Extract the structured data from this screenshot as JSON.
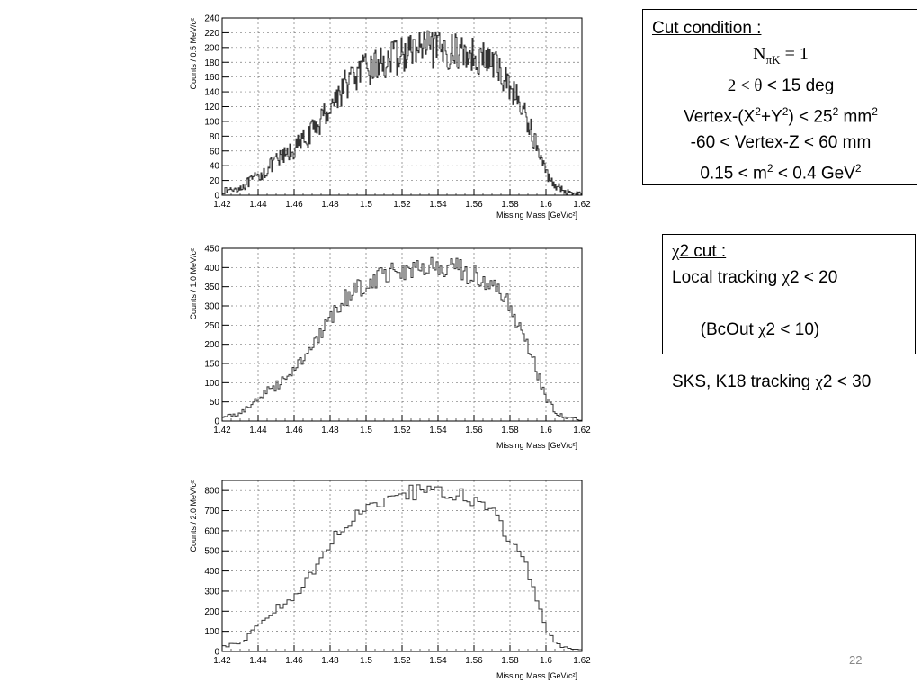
{
  "chart_data": [
    {
      "type": "histogram",
      "xlabel": "Missing Mass [GeV/c²]",
      "ylabel": "Counts / 0.5 MeV/c²",
      "xlim": [
        1.42,
        1.62
      ],
      "ylim": [
        0,
        240
      ],
      "xticks": [
        "1.42",
        "1.44",
        "1.46",
        "1.48",
        "1.5",
        "1.52",
        "1.54",
        "1.56",
        "1.58",
        "1.6",
        "1.62"
      ],
      "yticks": [
        "0",
        "20",
        "40",
        "60",
        "80",
        "100",
        "120",
        "140",
        "160",
        "180",
        "200",
        "220",
        "240"
      ],
      "grid": true,
      "bin_width": 0.0005,
      "shape_x": [
        1.42,
        1.43,
        1.44,
        1.45,
        1.46,
        1.47,
        1.48,
        1.49,
        1.5,
        1.51,
        1.52,
        1.53,
        1.54,
        1.55,
        1.56,
        1.57,
        1.58,
        1.59,
        1.6,
        1.605,
        1.61,
        1.62
      ],
      "shape_y": [
        5,
        10,
        25,
        45,
        62,
        85,
        120,
        155,
        170,
        180,
        190,
        200,
        195,
        195,
        190,
        180,
        150,
        100,
        30,
        15,
        5,
        2
      ],
      "noise": 14
    },
    {
      "type": "histogram",
      "xlabel": "Missing Mass [GeV/c²]",
      "ylabel": "Counts / 1.0 MeV/c²",
      "xlim": [
        1.42,
        1.62
      ],
      "ylim": [
        0,
        450
      ],
      "xticks": [
        "1.42",
        "1.44",
        "1.46",
        "1.48",
        "1.5",
        "1.52",
        "1.54",
        "1.56",
        "1.58",
        "1.6",
        "1.62"
      ],
      "yticks": [
        "0",
        "50",
        "100",
        "150",
        "200",
        "250",
        "300",
        "350",
        "400",
        "450"
      ],
      "grid": true,
      "bin_width": 0.001,
      "shape_x": [
        1.42,
        1.43,
        1.44,
        1.45,
        1.46,
        1.47,
        1.48,
        1.49,
        1.5,
        1.51,
        1.52,
        1.53,
        1.54,
        1.55,
        1.56,
        1.57,
        1.58,
        1.59,
        1.6,
        1.605,
        1.61,
        1.62
      ],
      "shape_y": [
        10,
        20,
        60,
        90,
        140,
        190,
        260,
        330,
        360,
        385,
        395,
        400,
        395,
        395,
        380,
        350,
        300,
        200,
        60,
        25,
        10,
        3
      ],
      "noise": 16
    },
    {
      "type": "histogram",
      "xlabel": "Missing Mass [GeV/c²]",
      "ylabel": "Counts / 2.0 MeV/c²",
      "xlim": [
        1.42,
        1.62
      ],
      "ylim": [
        0,
        850
      ],
      "xticks": [
        "1.42",
        "1.44",
        "1.46",
        "1.48",
        "1.5",
        "1.52",
        "1.54",
        "1.56",
        "1.58",
        "1.6",
        "1.62"
      ],
      "yticks": [
        "0",
        "100",
        "200",
        "300",
        "400",
        "500",
        "600",
        "700",
        "800"
      ],
      "grid": true,
      "bin_width": 0.002,
      "shape_x": [
        1.42,
        1.43,
        1.44,
        1.45,
        1.46,
        1.47,
        1.48,
        1.49,
        1.5,
        1.51,
        1.52,
        1.53,
        1.54,
        1.55,
        1.56,
        1.57,
        1.58,
        1.59,
        1.6,
        1.605,
        1.61,
        1.62
      ],
      "shape_y": [
        25,
        40,
        130,
        210,
        280,
        380,
        530,
        650,
        720,
        760,
        790,
        790,
        780,
        780,
        750,
        690,
        560,
        400,
        110,
        50,
        20,
        5
      ],
      "noise": 20
    }
  ],
  "cut_box": {
    "title": "Cut condition :",
    "n_main": "N",
    "n_sub": "πK",
    "n_rest": " = 1",
    "theta_left": "2 < θ",
    "theta_right": " < 15  deg",
    "vertex_xy_a": "Vertex-(X",
    "sup2": "2",
    "vertex_xy_b": "+Y",
    "vertex_xy_c": ") < 25",
    "vertex_xy_d": "  mm",
    "vertex_z": "-60 < Vertex-Z < 60  mm",
    "m2_a": "0.15 < m",
    "m2_b": " < 0.4  GeV"
  },
  "chi_box": {
    "title_chi": "χ",
    "title_rest": "2 cut :",
    "local_a": "Local tracking ",
    "local_b": "2 < 20",
    "bcout_a": "  (BcOut ",
    "bcout_b": "2 < 10)",
    "sks_a": "SKS, K18 tracking ",
    "sks_b": "2 < 30",
    "chi": "χ"
  },
  "page_number": "22"
}
